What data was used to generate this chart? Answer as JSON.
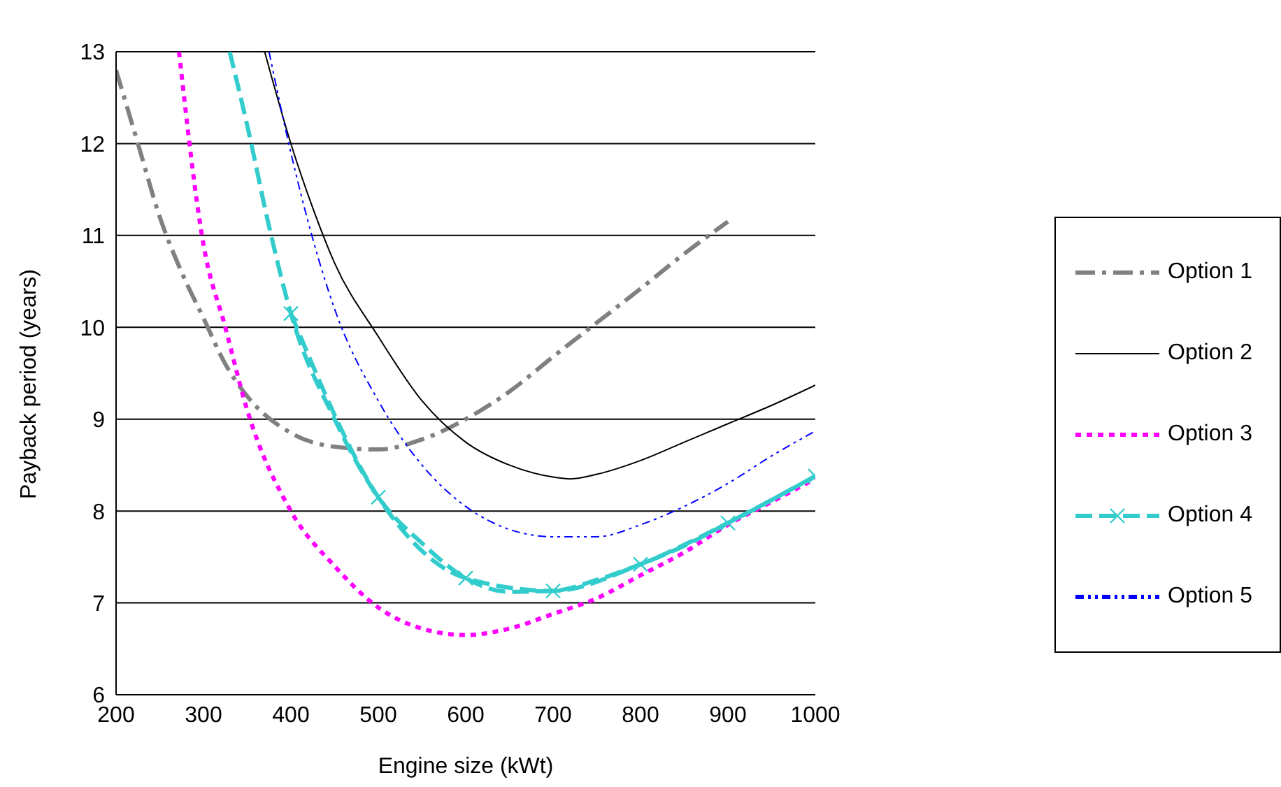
{
  "chart_data": {
    "type": "line",
    "xlabel": "Engine size (kWt)",
    "ylabel": "Payback period (years)",
    "xlim": [
      200,
      1000
    ],
    "xticks": [
      200,
      300,
      400,
      500,
      600,
      700,
      800,
      900,
      1000
    ],
    "ylim": [
      6,
      13
    ],
    "yticks": [
      6,
      7,
      8,
      9,
      10,
      11,
      12,
      13
    ],
    "grid": "y",
    "legend": "right",
    "series": [
      {
        "name": "Option 1",
        "color": "#808080",
        "line_style": "dashed",
        "marker": "none",
        "x": [
          200,
          225,
          250,
          275,
          300,
          325,
          350,
          400,
          450,
          500,
          550,
          600,
          650,
          700,
          750,
          800,
          850,
          900
        ],
        "values": [
          12.8,
          12.0,
          11.2,
          10.6,
          10.1,
          9.6,
          9.25,
          8.85,
          8.7,
          8.67,
          8.78,
          9.0,
          9.3,
          9.68,
          10.05,
          10.42,
          10.8,
          11.15
        ]
      },
      {
        "name": "Option 2",
        "color": "#000000",
        "line_style": "solid",
        "marker": "none",
        "x": [
          370,
          400,
          425,
          450,
          500,
          550,
          600,
          650,
          700,
          720,
          750,
          800,
          850,
          900,
          950,
          1000
        ],
        "values": [
          13,
          12.0,
          11.3,
          10.7,
          9.9,
          9.2,
          8.75,
          8.5,
          8.37,
          8.35,
          8.4,
          8.55,
          8.75,
          8.95,
          9.15,
          9.37
        ]
      },
      {
        "name": "Option 3",
        "color": "#ff00ff",
        "line_style": "dotted",
        "marker": "none",
        "x": [
          272,
          300,
          325,
          350,
          400,
          450,
          500,
          550,
          600,
          650,
          700,
          750,
          800,
          850,
          900,
          950,
          1000
        ],
        "values": [
          13,
          10.9,
          10.0,
          9.1,
          8.0,
          7.4,
          6.95,
          6.72,
          6.65,
          6.72,
          6.88,
          7.05,
          7.3,
          7.55,
          7.85,
          8.1,
          8.35
        ]
      },
      {
        "name": "Option 4",
        "color": "#33cccc",
        "line_style": "dashed",
        "marker": "cross",
        "x": [
          400,
          500,
          600,
          700,
          800,
          900,
          1000
        ],
        "values": [
          10.15,
          8.15,
          7.27,
          7.13,
          7.42,
          7.87,
          8.38
        ]
      },
      {
        "color": "#33cccc",
        "line_style": "dashed",
        "marker": "none",
        "x": [
          330,
          350,
          375,
          400,
          450,
          500,
          550,
          600,
          650,
          700,
          750,
          800,
          850,
          900,
          950,
          1000
        ],
        "values": [
          13,
          12.2,
          11.1,
          10.15,
          9.0,
          8.15,
          7.65,
          7.27,
          7.12,
          7.13,
          7.25,
          7.42,
          7.62,
          7.87,
          8.12,
          8.38
        ]
      },
      {
        "name": "Option 5",
        "color": "#0000ff",
        "line_style": "dashed",
        "marker": "none",
        "x": [
          375,
          400,
          450,
          500,
          550,
          600,
          650,
          700,
          750,
          800,
          850,
          900,
          950,
          1000
        ],
        "values": [
          13,
          11.9,
          10.2,
          9.2,
          8.5,
          8.05,
          7.8,
          7.72,
          7.72,
          7.85,
          8.05,
          8.3,
          8.6,
          8.87
        ]
      }
    ]
  }
}
